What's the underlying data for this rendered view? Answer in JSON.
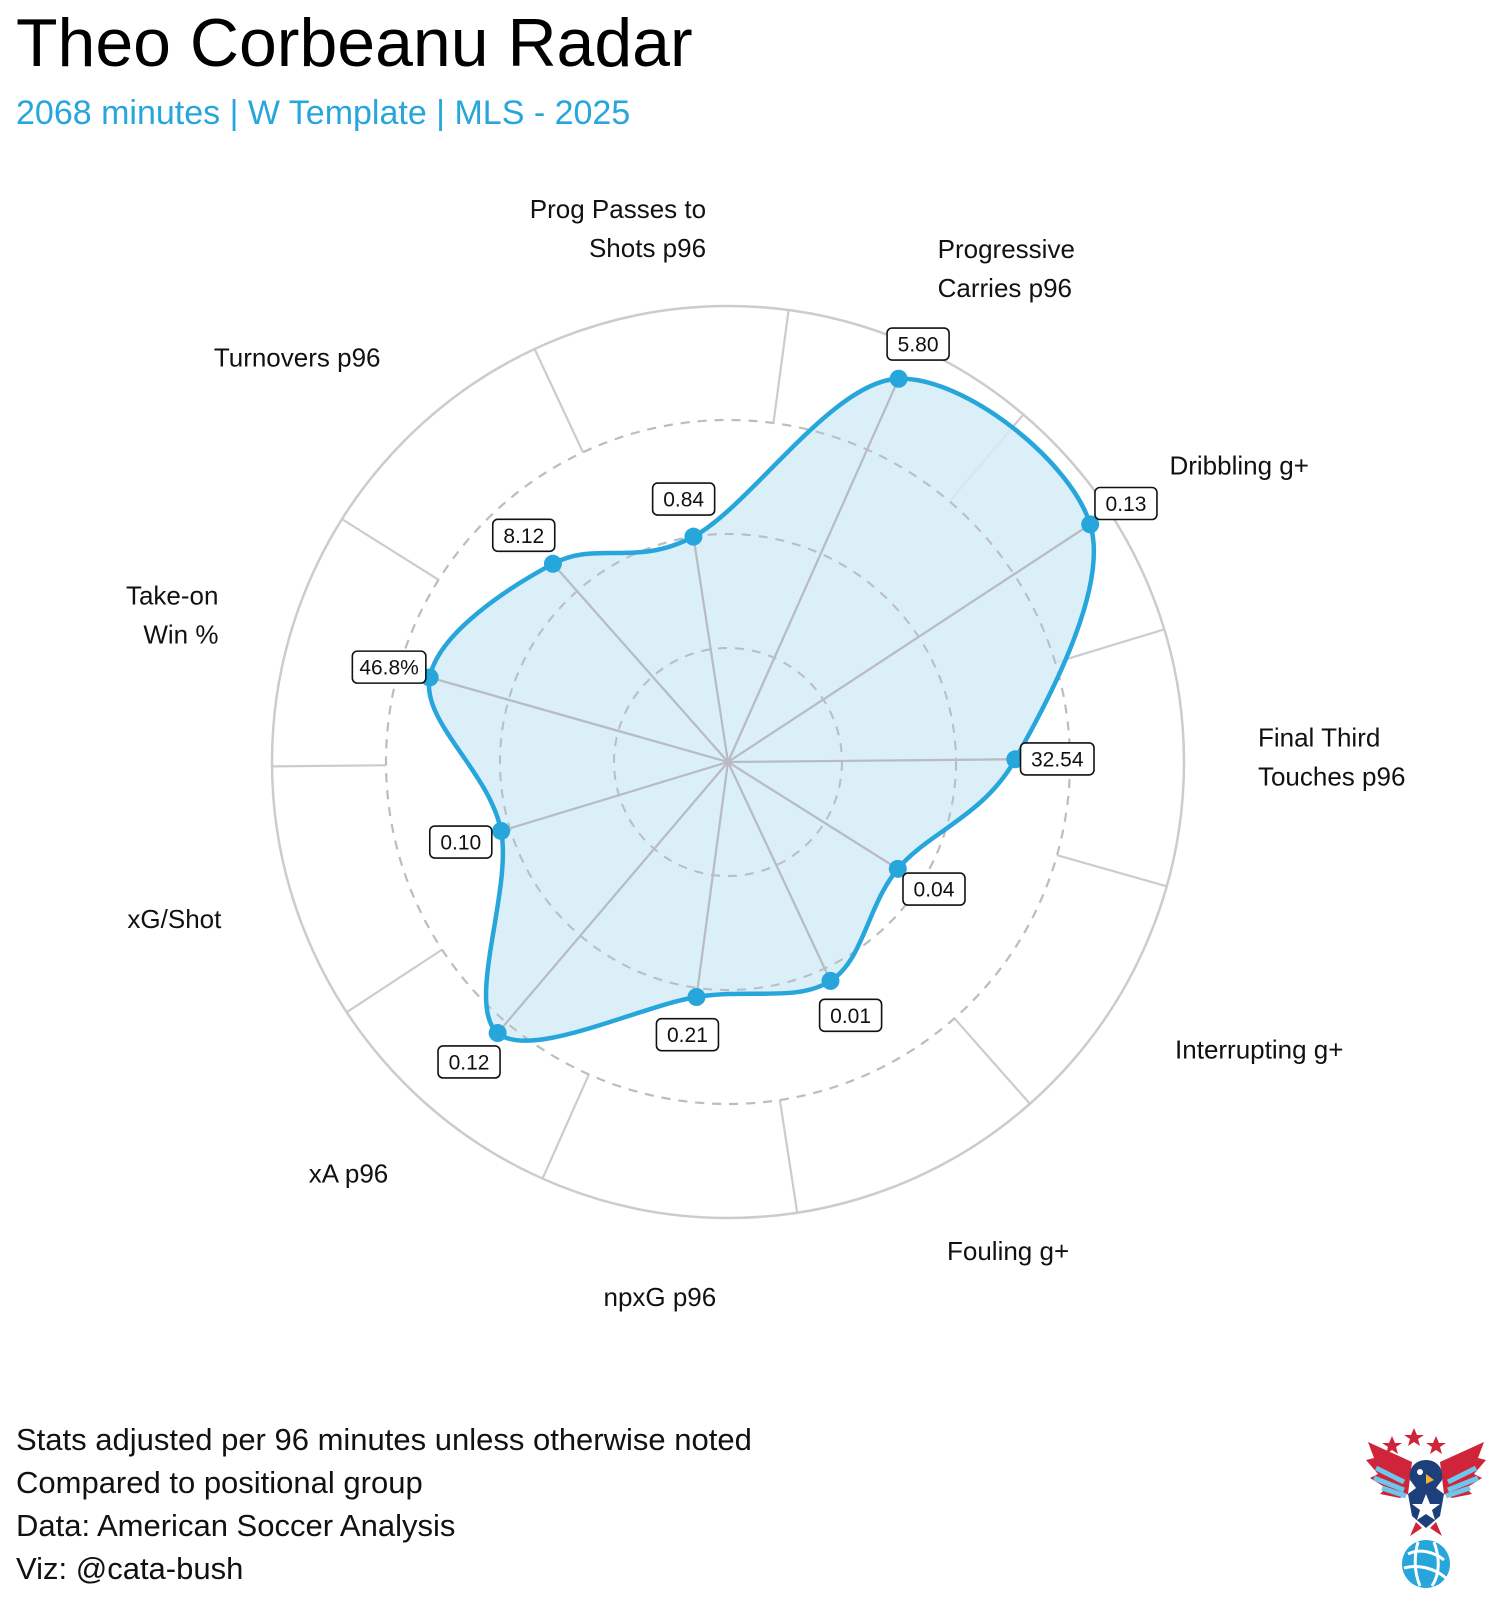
{
  "header": {
    "title": "Theo Corbeanu Radar",
    "subtitle": "2068 minutes | W Template | MLS - 2025"
  },
  "chart_data": {
    "type": "radar",
    "title": "Theo Corbeanu Radar",
    "subtitle": "2068 minutes | W Template | MLS - 2025",
    "rlim": [
      0,
      100
    ],
    "grid_levels": [
      25,
      50,
      75,
      100
    ],
    "grid": true,
    "colors": {
      "series": "#27a6dc",
      "fill": "#d5ecf8",
      "grid": "#cccccc",
      "spoke": "#b8bcc2"
    },
    "axes": [
      {
        "label": [
          "Progressive",
          "Carries p96"
        ],
        "value_label": "5.80",
        "percentile": 92
      },
      {
        "label": [
          "Dribbling g+"
        ],
        "value_label": "0.13",
        "percentile": 95
      },
      {
        "label": [
          "Final Third",
          "Touches p96"
        ],
        "value_label": "32.54",
        "percentile": 63
      },
      {
        "label": [
          "Interrupting g+"
        ],
        "value_label": "0.04",
        "percentile": 44
      },
      {
        "label": [
          "Fouling g+"
        ],
        "value_label": "0.01",
        "percentile": 53
      },
      {
        "label": [
          "npxG p96"
        ],
        "value_label": "0.21",
        "percentile": 52
      },
      {
        "label": [
          "xA p96"
        ],
        "value_label": "0.12",
        "percentile": 78
      },
      {
        "label": [
          "xG/Shot"
        ],
        "value_label": "0.10",
        "percentile": 52
      },
      {
        "label": [
          "Take-on",
          "Win %"
        ],
        "value_label": "46.8%",
        "percentile": 68
      },
      {
        "label": [
          "Turnovers p96"
        ],
        "value_label": "8.12",
        "percentile": 58
      },
      {
        "label": [
          "Prog Passes to",
          "Shots p96"
        ],
        "value_label": "0.84",
        "percentile": 50
      }
    ]
  },
  "footer": {
    "notes": [
      "Stats adjusted per 96 minutes unless otherwise noted",
      "Compared to positional group",
      "Data: American Soccer Analysis",
      "Viz: @cata-bush"
    ],
    "logo_icon": "eagle-soccer-logo-icon"
  }
}
